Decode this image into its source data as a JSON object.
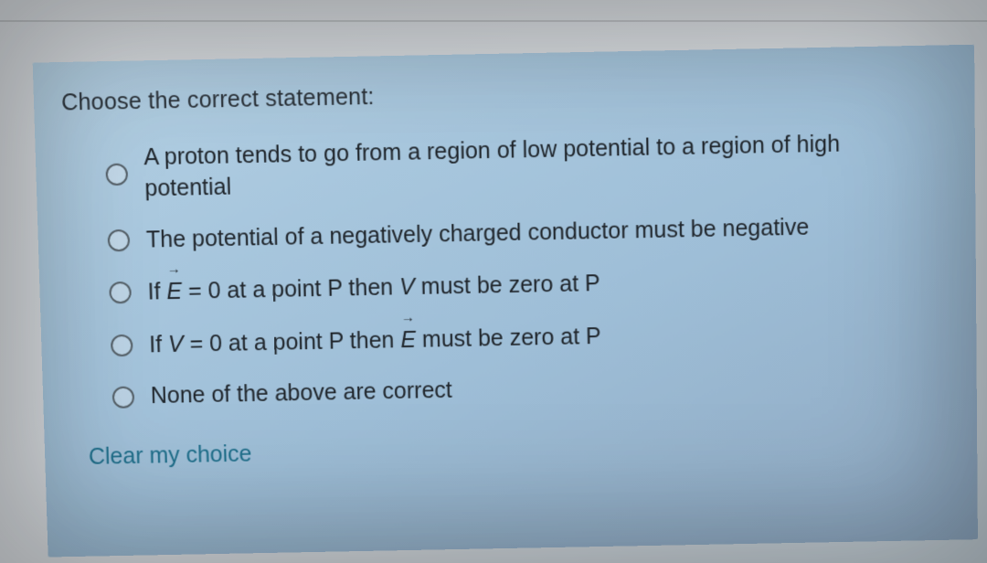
{
  "card": {
    "background_gradient": [
      "#b5d1e4",
      "#a7c6dd",
      "#9ebed7",
      "#8ea8c1"
    ],
    "text_color": "#232a31",
    "prompt_fontsize": 25,
    "option_fontsize": 25
  },
  "question": {
    "prompt": "Choose the correct statement:",
    "options": [
      {
        "html": "A proton tends to go from a region of low potential to a region of high potential"
      },
      {
        "html": "The potential of a negatively charged conductor must be negative"
      },
      {
        "html": "If <span class='vec'>E</span> = 0 at a point P then <span class='mathit'>V</span> must be zero at P"
      },
      {
        "html": "If <span class='mathit'>V</span> = 0 at a point P then <span class='vec'>E</span> must be zero at P"
      },
      {
        "html": "None of the above are correct"
      }
    ]
  },
  "actions": {
    "clear_label": "Clear my choice",
    "clear_color": "#1f6f8b"
  }
}
